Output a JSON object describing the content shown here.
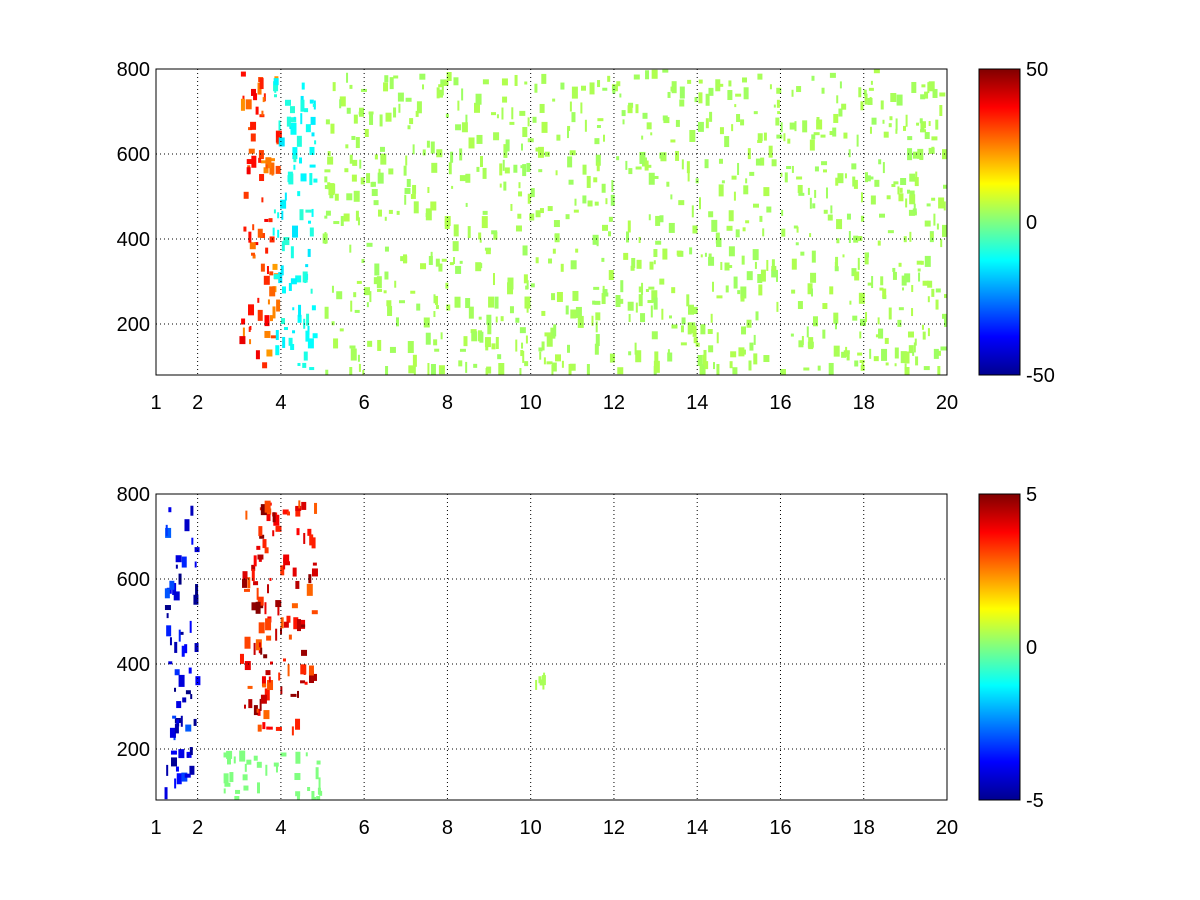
{
  "chart_data": [
    {
      "type": "heatmap",
      "title": "",
      "xlabel": "",
      "ylabel": "",
      "xlim": [
        1,
        20
      ],
      "ylim": [
        80,
        800
      ],
      "x_ticks": [
        "1",
        "2",
        "4",
        "6",
        "8",
        "10",
        "12",
        "14",
        "16",
        "18",
        "20"
      ],
      "y_ticks": [
        "200",
        "400",
        "600",
        "800"
      ],
      "grid": true,
      "grid_style": "dotted",
      "colormap": "jet",
      "clim": [
        -50,
        50
      ],
      "colorbar_ticks": [
        "50",
        "0",
        "-50"
      ],
      "features": [
        {
          "description": "dense high positive ridge",
          "x": [
            3.0,
            3.9
          ],
          "y": [
            100,
            800
          ],
          "peak_value": 40
        },
        {
          "description": "band of negative values",
          "x": [
            3.8,
            4.8
          ],
          "y": [
            90,
            800
          ],
          "peak_value": -15
        },
        {
          "description": "scattered near-zero cells",
          "x": [
            5,
            20
          ],
          "y": [
            80,
            800
          ],
          "peak_value": 5
        }
      ]
    },
    {
      "type": "heatmap",
      "title": "",
      "xlabel": "",
      "ylabel": "",
      "xlim": [
        1,
        20
      ],
      "ylim": [
        80,
        800
      ],
      "x_ticks": [
        "1",
        "2",
        "4",
        "6",
        "8",
        "10",
        "12",
        "14",
        "16",
        "18",
        "20"
      ],
      "y_ticks": [
        "200",
        "400",
        "600",
        "800"
      ],
      "grid": true,
      "grid_style": "dotted",
      "colormap": "jet",
      "clim": [
        -5,
        5
      ],
      "colorbar_ticks": [
        "5",
        "0",
        "-5"
      ],
      "features": [
        {
          "description": "strong positive cluster",
          "x": [
            3.0,
            4.8
          ],
          "y": [
            250,
            790
          ],
          "peak_value": 5
        },
        {
          "description": "near-zero cells at low y",
          "x": [
            2.6,
            5.0
          ],
          "y": [
            80,
            200
          ],
          "peak_value": 0
        },
        {
          "description": "negative vertical streaks",
          "x": [
            1.2,
            1.95
          ],
          "y": [
            100,
            780
          ],
          "peak_value": -5
        },
        {
          "description": "isolated cell",
          "x": [
            10.1,
            10.3
          ],
          "y": [
            360,
            380
          ],
          "peak_value": 0.5
        }
      ]
    }
  ]
}
